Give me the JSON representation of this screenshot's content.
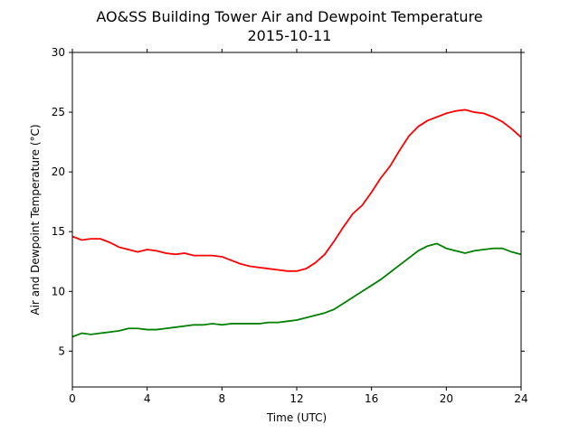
{
  "chart_data": {
    "type": "line",
    "title": "AO&SS Building Tower Air and Dewpoint Temperature",
    "subtitle": "2015-10-11",
    "xlabel": "Time (UTC)",
    "ylabel": "Air and Dewpoint Temperature (°C)",
    "xlim": [
      0,
      24
    ],
    "ylim": [
      2,
      30
    ],
    "xticks": [
      0,
      4,
      8,
      12,
      16,
      20,
      24
    ],
    "yticks": [
      5,
      10,
      15,
      20,
      25,
      30
    ],
    "grid": false,
    "series": [
      {
        "color": "#ff0000",
        "x": [
          0,
          0.5,
          1,
          1.5,
          2,
          2.5,
          3,
          3.5,
          4,
          4.5,
          5,
          5.5,
          6,
          6.5,
          7,
          7.5,
          8,
          8.5,
          9,
          9.5,
          10,
          10.5,
          11,
          11.5,
          12,
          12.5,
          13,
          13.5,
          14,
          14.5,
          15,
          15.5,
          16,
          16.5,
          17,
          17.5,
          18,
          18.5,
          19,
          19.5,
          20,
          20.5,
          21,
          21.5,
          22,
          22.5,
          23,
          23.5,
          24
        ],
        "y": [
          14.6,
          14.3,
          14.4,
          14.4,
          14.1,
          13.7,
          13.5,
          13.3,
          13.5,
          13.4,
          13.2,
          13.1,
          13.2,
          13.0,
          13.0,
          13.0,
          12.9,
          12.6,
          12.3,
          12.1,
          12.0,
          11.9,
          11.8,
          11.7,
          11.7,
          11.9,
          12.4,
          13.1,
          14.2,
          15.4,
          16.5,
          17.2,
          18.3,
          19.5,
          20.5,
          21.8,
          23.0,
          23.8,
          24.3,
          24.6,
          24.9,
          25.1,
          25.2,
          25.0,
          24.9,
          24.6,
          24.2,
          23.6,
          22.9
        ]
      },
      {
        "color": "#008000",
        "x": [
          0,
          0.5,
          1,
          1.5,
          2,
          2.5,
          3,
          3.5,
          4,
          4.5,
          5,
          5.5,
          6,
          6.5,
          7,
          7.5,
          8,
          8.5,
          9,
          9.5,
          10,
          10.5,
          11,
          11.5,
          12,
          12.5,
          13,
          13.5,
          14,
          14.5,
          15,
          15.5,
          16,
          16.5,
          17,
          17.5,
          18,
          18.5,
          19,
          19.5,
          20,
          20.5,
          21,
          21.5,
          22,
          22.5,
          23,
          23.5,
          24
        ],
        "y": [
          6.2,
          6.5,
          6.4,
          6.5,
          6.6,
          6.7,
          6.9,
          6.9,
          6.8,
          6.8,
          6.9,
          7.0,
          7.1,
          7.2,
          7.2,
          7.3,
          7.2,
          7.3,
          7.3,
          7.3,
          7.3,
          7.4,
          7.4,
          7.5,
          7.6,
          7.8,
          8.0,
          8.2,
          8.5,
          9.0,
          9.5,
          10.0,
          10.5,
          11.0,
          11.6,
          12.2,
          12.8,
          13.4,
          13.8,
          14.0,
          13.6,
          13.4,
          13.2,
          13.4,
          13.5,
          13.6,
          13.6,
          13.3,
          13.1
        ]
      }
    ]
  }
}
